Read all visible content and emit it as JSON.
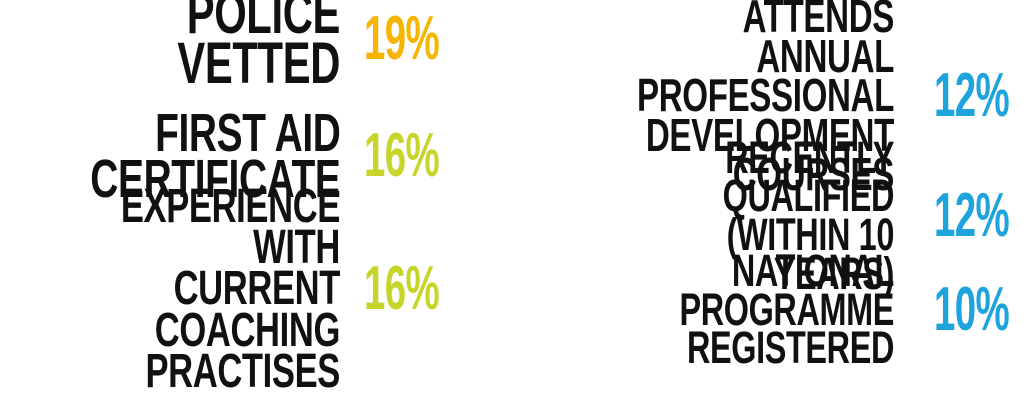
{
  "colors": {
    "label": "#111111",
    "orange": "#F5B500",
    "lime": "#C7D52B",
    "blue": "#1EA3DC"
  },
  "items": [
    {
      "label": "POLICE VETTED",
      "percent": "19%",
      "color": "#F5B500"
    },
    {
      "label": "FIRST AID\nCERTIFICATE",
      "percent": "16%",
      "color": "#C7D52B"
    },
    {
      "label": "EXPERIENCE WITH\nCURRENT COACHING\nPRACTISES",
      "percent": "16%",
      "color": "#C7D52B"
    },
    {
      "label": "ATTENDS ANNUAL\nPROFESSIONAL\nDEVELOPMENT COURSES",
      "percent": "12%",
      "color": "#1EA3DC"
    },
    {
      "label": "RECENTLY QUALIFIED\n(WITHIN 10 YEARS)",
      "percent": "12%",
      "color": "#1EA3DC"
    },
    {
      "label": "NATIONAL PROGRAMME\nREGISTERED",
      "percent": "10%",
      "color": "#1EA3DC"
    }
  ]
}
